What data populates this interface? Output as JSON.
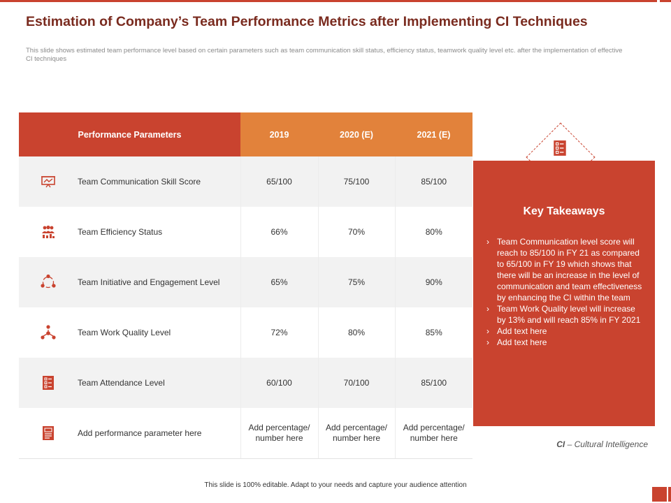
{
  "slide": {
    "title": "Estimation of Company’s Team Performance Metrics after Implementing CI Techniques",
    "subtitle": "This slide shows estimated team performance level based on certain parameters such as team communication skill status, efficiency status, teamwork quality level etc. after the implementation of effective CI techniques",
    "footer": "This slide is 100% editable.  Adapt to your needs and capture your audience attention"
  },
  "table": {
    "headers": [
      "Performance Parameters",
      "2019",
      "2020 (E)",
      "2021 (E)"
    ],
    "rows": [
      {
        "icon": "presentation-board-icon",
        "parameter": "Team Communication Skill Score",
        "values": [
          "65/100",
          "75/100",
          "85/100"
        ]
      },
      {
        "icon": "team-group-icon",
        "parameter": "Team Efficiency Status",
        "values": [
          "66%",
          "70%",
          "80%"
        ]
      },
      {
        "icon": "engagement-cycle-icon",
        "parameter": "Team Initiative and Engagement Level",
        "values": [
          "65%",
          "75%",
          "90%"
        ]
      },
      {
        "icon": "network-people-icon",
        "parameter": "Team Work Quality Level",
        "values": [
          "72%",
          "80%",
          "85%"
        ]
      },
      {
        "icon": "checklist-icon",
        "parameter": "Team Attendance Level",
        "values": [
          "60/100",
          "70/100",
          "85/100"
        ]
      },
      {
        "icon": "document-icon",
        "parameter": "Add performance parameter here",
        "values": [
          "Add percentage/ number here",
          "Add percentage/ number here",
          "Add percentage/ number here"
        ]
      }
    ]
  },
  "takeaways": {
    "title": "Key Takeaways",
    "icon": "checklist-icon",
    "items": [
      "Team Communication level score will reach to 85/100 in FY 21 as compared to 65/100 in FY 19 which shows that there will be an increase in the level of communication and team effectiveness  by enhancing the CI within the team",
      "Team Work Quality level will increase by 13% and will reach 85% in FY 2021",
      "Add text here",
      "Add text here"
    ]
  },
  "note": {
    "abbr": "CI",
    "text": " – Cultural Intelligence"
  },
  "colors": {
    "primary": "#c9432f",
    "accent": "#e2823b",
    "title": "#7a2b1f",
    "row_shade": "#f2f2f2"
  }
}
